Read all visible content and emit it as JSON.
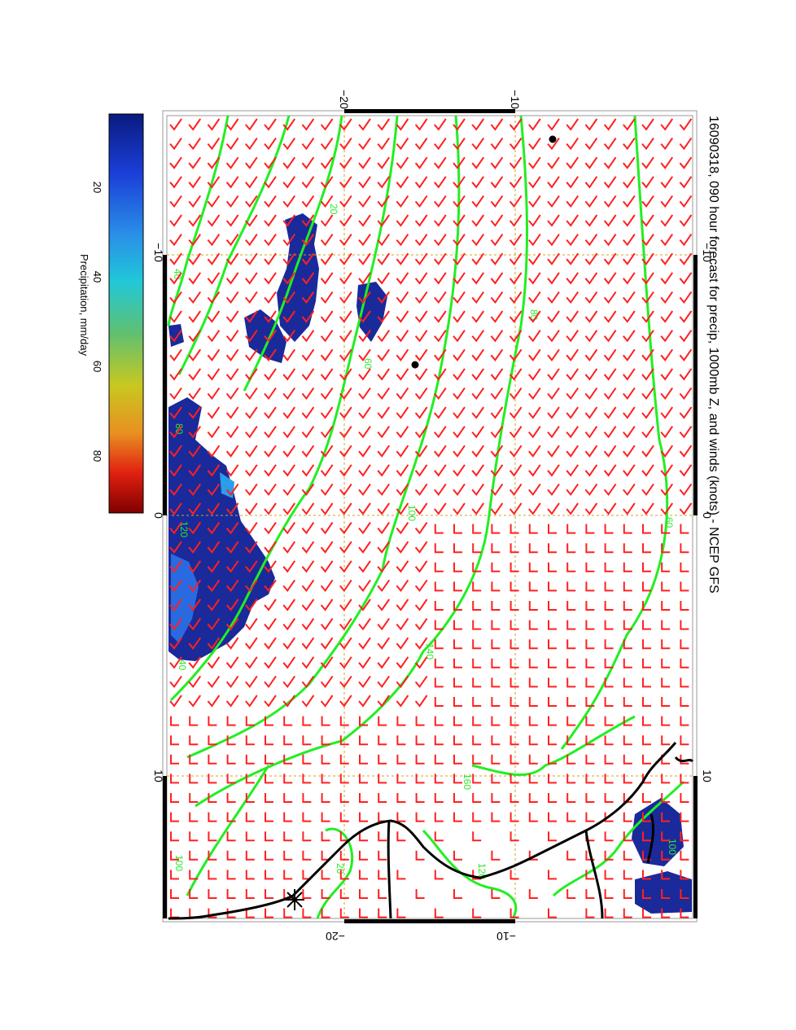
{
  "title": "16090318, 090 hour forecast for precip, 1000mb Z, and winds (knots) - NCEP GFS",
  "colorbar": {
    "label": "Precipitation, mm/day",
    "ticks": [
      "20",
      "40",
      "60",
      "80"
    ],
    "colors": [
      "#0a1a80",
      "#1b3fd8",
      "#2a8ee8",
      "#20c8d8",
      "#60c070",
      "#c8c820",
      "#e89020",
      "#e02010",
      "#800000"
    ]
  },
  "axes": {
    "top_ticks": [
      "−20",
      "−10"
    ],
    "bottom_ticks": [
      "−20",
      "−10"
    ],
    "left_ticks": [
      "−10",
      "0",
      "10"
    ],
    "right_ticks": [
      "−10",
      "0",
      "10"
    ]
  },
  "contour_labels": [
    "20",
    "40",
    "60",
    "80",
    "100",
    "120",
    "140",
    "160",
    "20",
    "40",
    "60",
    "80",
    "100",
    "120",
    "100"
  ],
  "colors": {
    "wind_barbs": "#ff2020",
    "contours": "#22ee22",
    "precip_core": "#1a2a9a",
    "grid": "#d4a020",
    "coastline": "#000000"
  },
  "layers": [
    "precipitation-fill",
    "geopotential-contours",
    "wind-barbs",
    "coastline",
    "lat-lon-grid"
  ]
}
